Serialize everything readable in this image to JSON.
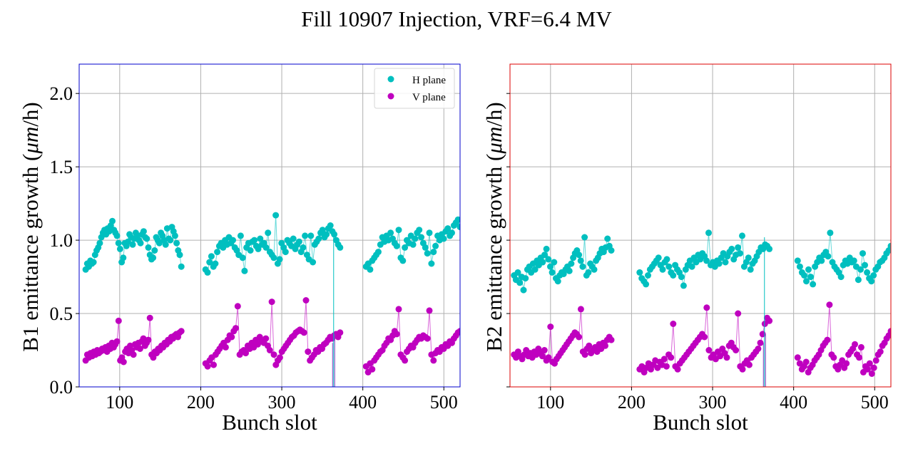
{
  "chart_data": {
    "type": "scatter",
    "title": "Fill 10907 Injection, VRF=6.4 MV",
    "colors": {
      "H plane": "#00bfbf",
      "V plane": "#bf00bf",
      "b1_frame": "#0000cc",
      "b2_frame": "#dd0000",
      "grid": "#b0b0b0"
    },
    "legend": {
      "entries": [
        "H plane",
        "V plane"
      ],
      "placement": "upper-right of left panel"
    },
    "panels": [
      {
        "name": "B1",
        "ylabel": "B1 emittance growth (μm/h)",
        "ylabel_prefix": "B1 emittance growth (",
        "ylabel_unit": "μm",
        "ylabel_suffix": "/h)",
        "xlabel": "Bunch slot",
        "xlim": [
          50,
          520
        ],
        "ylim": [
          0.0,
          2.2
        ],
        "xticks": [
          100,
          200,
          300,
          400,
          500
        ],
        "xtick_labels": [
          "100",
          "200",
          "300",
          "400",
          "500"
        ],
        "yticks": [
          0.0,
          0.5,
          1.0,
          1.5,
          2.0
        ],
        "ytick_labels": [
          "0.0",
          "0.5",
          "1.0",
          "1.5",
          "2.0"
        ],
        "show_ytick_labels": true,
        "grid": true,
        "trains": [
          {
            "start": 58,
            "end": 176,
            "H": [
              0.8,
              0.84,
              0.82,
              0.86,
              0.84,
              0.85,
              0.9,
              0.93,
              0.95,
              0.98,
              1.02,
              1.05,
              1.07,
              1.04,
              1.08,
              1.06,
              1.1,
              1.13,
              1.07,
              1.05,
              1.03,
              0.98,
              0.94,
              0.85,
              0.88,
              0.98,
              0.96,
              0.99,
              1.04,
              1.02,
              0.97,
              1.01,
              1.05,
              1.03,
              1.0,
              0.98,
              1.04,
              1.06,
              1.02,
              1.01,
              0.95,
              0.9,
              0.87,
              0.88,
              0.93,
              1.02,
              1.0,
              0.98,
              1.05,
              1.03,
              1.0,
              0.97,
              1.08,
              1.01,
              1.0,
              1.09,
              1.06,
              1.03,
              0.98,
              0.93,
              0.9,
              0.82
            ],
            "V": [
              0.18,
              0.22,
              0.2,
              0.23,
              0.21,
              0.24,
              0.22,
              0.25,
              0.23,
              0.24,
              0.26,
              0.25,
              0.27,
              0.24,
              0.28,
              0.26,
              0.3,
              0.27,
              0.29,
              0.31,
              0.45,
              0.18,
              0.2,
              0.17,
              0.24,
              0.26,
              0.23,
              0.28,
              0.25,
              0.22,
              0.29,
              0.27,
              0.3,
              0.26,
              0.31,
              0.33,
              0.28,
              0.3,
              0.32,
              0.47,
              0.22,
              0.2,
              0.24,
              0.23,
              0.26,
              0.25,
              0.28,
              0.27,
              0.3,
              0.29,
              0.32,
              0.31,
              0.34,
              0.33,
              0.35,
              0.36,
              0.34,
              0.37,
              0.38
            ]
          },
          {
            "start": 206,
            "end": 372,
            "H": [
              0.8,
              0.78,
              0.85,
              0.89,
              0.82,
              0.84,
              0.92,
              0.96,
              0.98,
              0.95,
              1.0,
              0.97,
              1.02,
              0.98,
              1.0,
              0.95,
              0.93,
              0.9,
              1.03,
              0.88,
              0.79,
              0.95,
              0.98,
              0.93,
              0.99,
              1.0,
              0.96,
              0.94,
              1.01,
              0.97,
              0.98,
              0.95,
              1.05,
              0.92,
              0.9,
              0.88,
              1.17,
              0.84,
              0.87,
              0.98,
              0.95,
              0.92,
              1.0,
              0.98,
              0.96,
              1.01,
              0.94,
              0.97,
              0.99,
              0.92,
              0.95,
              1.03,
              0.9,
              0.87,
              1.03,
              0.85,
              0.97,
              0.99,
              1.01,
              1.05,
              1.07,
              1.02,
              1.04,
              1.08,
              1.1,
              1.06,
              1.04,
              1.0,
              0.97,
              0.95
            ],
            "V": [
              0.16,
              0.14,
              0.18,
              0.2,
              0.15,
              0.22,
              0.24,
              0.26,
              0.28,
              0.3,
              0.27,
              0.32,
              0.35,
              0.34,
              0.38,
              0.4,
              0.55,
              0.22,
              0.24,
              0.25,
              0.23,
              0.28,
              0.26,
              0.3,
              0.27,
              0.32,
              0.29,
              0.34,
              0.31,
              0.3,
              0.33,
              0.28,
              0.25,
              0.58,
              0.22,
              0.15,
              0.18,
              0.2,
              0.24,
              0.26,
              0.28,
              0.3,
              0.32,
              0.34,
              0.35,
              0.37,
              0.38,
              0.39,
              0.38,
              0.37,
              0.59,
              0.24,
              0.18,
              0.2,
              0.22,
              0.25,
              0.24,
              0.27,
              0.26,
              0.29,
              0.3,
              0.32,
              0.34,
              0.33,
              0.35,
              0.36,
              0.34,
              0.37
            ]
          },
          {
            "start": 404,
            "end": 520,
            "H": [
              0.82,
              0.84,
              0.8,
              0.86,
              0.88,
              0.9,
              0.92,
              0.97,
              1.02,
              0.99,
              1.03,
              1.0,
              1.05,
              1.01,
              0.98,
              0.96,
              1.07,
              0.88,
              0.86,
              0.95,
              1.0,
              0.98,
              1.03,
              0.97,
              1.01,
              1.05,
              1.07,
              1.02,
              0.98,
              0.95,
              0.91,
              1.05,
              0.84,
              0.92,
              0.96,
              1.03,
              1.0,
              1.04,
              1.01,
              1.06,
              1.08,
              1.03,
              1.05,
              1.1,
              1.12,
              1.14,
              1.09
            ],
            "V": [
              0.14,
              0.1,
              0.16,
              0.12,
              0.18,
              0.2,
              0.22,
              0.24,
              0.25,
              0.28,
              0.3,
              0.33,
              0.32,
              0.35,
              0.38,
              0.36,
              0.53,
              0.22,
              0.2,
              0.18,
              0.24,
              0.26,
              0.28,
              0.27,
              0.3,
              0.32,
              0.34,
              0.33,
              0.35,
              0.34,
              0.33,
              0.52,
              0.22,
              0.18,
              0.23,
              0.25,
              0.24,
              0.27,
              0.26,
              0.29,
              0.28,
              0.31,
              0.3,
              0.33,
              0.35,
              0.37,
              0.38
            ]
          }
        ],
        "drop_to_zero_at": 364
      },
      {
        "name": "B2",
        "ylabel": "B2 emittance growth (μm/h)",
        "ylabel_prefix": "B2 emittance growth (",
        "ylabel_unit": "μm",
        "ylabel_suffix": "/h)",
        "xlabel": "Bunch slot",
        "xlim": [
          50,
          520
        ],
        "ylim": [
          0.0,
          2.2
        ],
        "xticks": [
          100,
          200,
          300,
          400,
          500
        ],
        "xtick_labels": [
          "100",
          "200",
          "300",
          "400",
          "500"
        ],
        "yticks": [
          0.0,
          0.5,
          1.0,
          1.5,
          2.0
        ],
        "ytick_labels": [
          "",
          "",
          "",
          "",
          ""
        ],
        "show_ytick_labels": false,
        "grid": true,
        "trains": [
          {
            "start": 55,
            "end": 175,
            "H": [
              0.76,
              0.73,
              0.78,
              0.71,
              0.75,
              0.66,
              0.74,
              0.8,
              0.82,
              0.78,
              0.84,
              0.8,
              0.86,
              0.83,
              0.88,
              0.85,
              0.9,
              0.94,
              0.87,
              0.82,
              0.78,
              0.85,
              0.74,
              0.72,
              0.76,
              0.78,
              0.77,
              0.8,
              0.82,
              0.79,
              0.84,
              0.88,
              0.91,
              0.93,
              0.9,
              0.86,
              0.82,
              1.02,
              0.76,
              0.78,
              0.84,
              0.82,
              0.8,
              0.86,
              0.88,
              0.91,
              0.94,
              0.92,
              0.95,
              1.01,
              0.96,
              0.93
            ],
            "V": [
              0.22,
              0.2,
              0.24,
              0.21,
              0.19,
              0.22,
              0.25,
              0.21,
              0.23,
              0.2,
              0.24,
              0.22,
              0.26,
              0.23,
              0.21,
              0.25,
              0.18,
              0.2,
              0.41,
              0.17,
              0.16,
              0.19,
              0.21,
              0.23,
              0.25,
              0.27,
              0.29,
              0.31,
              0.33,
              0.35,
              0.37,
              0.36,
              0.34,
              0.53,
              0.24,
              0.22,
              0.26,
              0.28,
              0.23,
              0.25,
              0.27,
              0.24,
              0.29,
              0.26,
              0.3,
              0.28,
              0.32,
              0.34,
              0.32
            ]
          },
          {
            "start": 210,
            "end": 370,
            "H": [
              0.78,
              0.74,
              0.72,
              0.7,
              0.76,
              0.8,
              0.82,
              0.84,
              0.86,
              0.88,
              0.83,
              0.8,
              0.85,
              0.87,
              0.82,
              0.78,
              0.76,
              0.83,
              0.8,
              0.78,
              0.75,
              0.69,
              0.8,
              0.83,
              0.86,
              0.82,
              0.88,
              0.85,
              0.9,
              0.87,
              0.91,
              0.89,
              0.86,
              1.05,
              0.83,
              0.85,
              0.82,
              0.86,
              0.84,
              0.88,
              0.91,
              0.85,
              0.89,
              0.92,
              0.94,
              0.87,
              0.9,
              0.95,
              0.91,
              1.03,
              0.82,
              0.85,
              0.88,
              0.8,
              0.84,
              0.86,
              0.89,
              0.92,
              0.95,
              0.94,
              0.97,
              0.96,
              0.94
            ],
            "V": [
              0.12,
              0.14,
              0.1,
              0.13,
              0.16,
              0.12,
              0.15,
              0.18,
              0.13,
              0.17,
              0.15,
              0.19,
              0.14,
              0.22,
              0.2,
              0.43,
              0.14,
              0.12,
              0.16,
              0.18,
              0.2,
              0.22,
              0.24,
              0.26,
              0.28,
              0.3,
              0.32,
              0.34,
              0.36,
              0.34,
              0.54,
              0.25,
              0.2,
              0.22,
              0.19,
              0.24,
              0.21,
              0.26,
              0.23,
              0.2,
              0.28,
              0.3,
              0.27,
              0.25,
              0.5,
              0.14,
              0.12,
              0.16,
              0.18,
              0.15,
              0.2,
              0.22,
              0.24,
              0.26,
              0.3,
              0.36,
              0.43,
              0.47,
              0.45
            ]
          },
          {
            "start": 405,
            "end": 520,
            "H": [
              0.86,
              0.82,
              0.78,
              0.76,
              0.72,
              0.8,
              0.75,
              0.7,
              0.82,
              0.85,
              0.88,
              0.86,
              0.9,
              0.92,
              0.89,
              1.05,
              0.85,
              0.82,
              0.8,
              0.78,
              0.75,
              0.83,
              0.86,
              0.84,
              0.88,
              0.85,
              0.86,
              0.82,
              0.73,
              0.8,
              0.91,
              0.83,
              0.78,
              0.74,
              0.72,
              0.76,
              0.8,
              0.82,
              0.85,
              0.86,
              0.88,
              0.91,
              0.93,
              0.96
            ],
            "V": [
              0.2,
              0.16,
              0.12,
              0.14,
              0.17,
              0.1,
              0.13,
              0.15,
              0.18,
              0.2,
              0.22,
              0.25,
              0.28,
              0.3,
              0.32,
              0.56,
              0.22,
              0.2,
              0.14,
              0.12,
              0.15,
              0.18,
              0.13,
              0.16,
              0.22,
              0.24,
              0.26,
              0.29,
              0.22,
              0.2,
              0.27,
              0.1,
              0.14,
              0.12,
              0.16,
              0.09,
              0.13,
              0.18,
              0.22,
              0.24,
              0.28,
              0.3,
              0.33,
              0.35,
              0.38
            ]
          }
        ],
        "drop_to_zero_at": 364
      }
    ]
  }
}
